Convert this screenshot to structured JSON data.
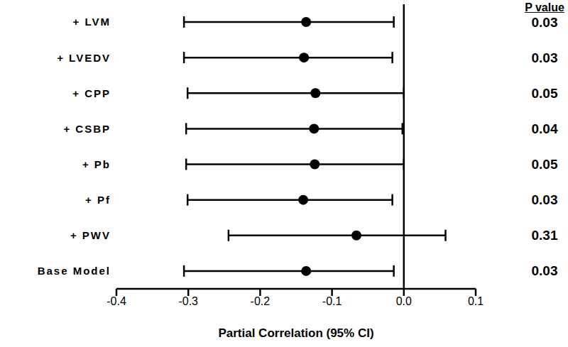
{
  "chart_data": {
    "type": "forest",
    "orientation": "horizontal",
    "xlabel": "Partial Correlation (95% CI)",
    "categories": [
      "+ LVM",
      "+ LVEDV",
      "+ CPP",
      "+ CSBP",
      "+ Pb",
      "+ Pf",
      "+ PWV",
      "Base Model"
    ],
    "values": [
      -0.136,
      -0.139,
      -0.123,
      -0.125,
      -0.124,
      -0.14,
      -0.066,
      -0.136
    ],
    "ci_low": [
      -0.306,
      -0.306,
      -0.301,
      -0.303,
      -0.303,
      -0.301,
      -0.244,
      -0.306
    ],
    "ci_high": [
      -0.014,
      -0.016,
      0.0,
      -0.002,
      0.0,
      -0.016,
      0.058,
      -0.014
    ],
    "p_value_title": "P value",
    "p_values": [
      "0.03",
      "0.03",
      "0.05",
      "0.04",
      "0.05",
      "0.03",
      "0.31",
      "0.03"
    ],
    "reference_line": 0,
    "xlim": [
      -0.4,
      0.1
    ],
    "xticks": [
      -0.4,
      -0.3,
      -0.2,
      -0.1,
      {
        "value": 0,
        "label": "0.0"
      },
      0.1
    ],
    "color": "#000000",
    "marker": "circle",
    "grid": false
  }
}
